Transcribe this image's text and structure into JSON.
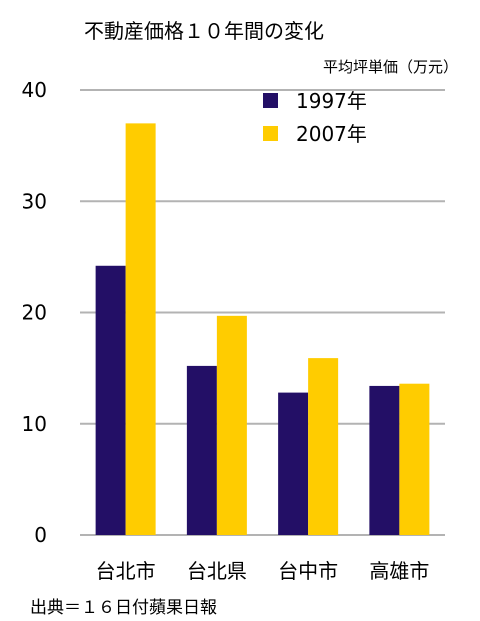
{
  "chart_data": {
    "type": "bar",
    "title": "不動産価格１０年間の変化",
    "unit_label": "平均坪単価（万元）",
    "categories": [
      "台北市",
      "台北県",
      "台中市",
      "高雄市"
    ],
    "series": [
      {
        "name": "1997年",
        "color": "#230F66",
        "values": [
          24.2,
          15.2,
          12.8,
          13.4
        ]
      },
      {
        "name": "2007年",
        "color": "#FFCC00",
        "values": [
          37.0,
          19.7,
          15.9,
          13.6
        ]
      }
    ],
    "yticks": [
      0,
      10,
      20,
      30,
      40
    ],
    "ylim": [
      0,
      40
    ],
    "grid": true,
    "legend_position": "top-right",
    "source": "出典＝１６日付蘋果日報"
  }
}
